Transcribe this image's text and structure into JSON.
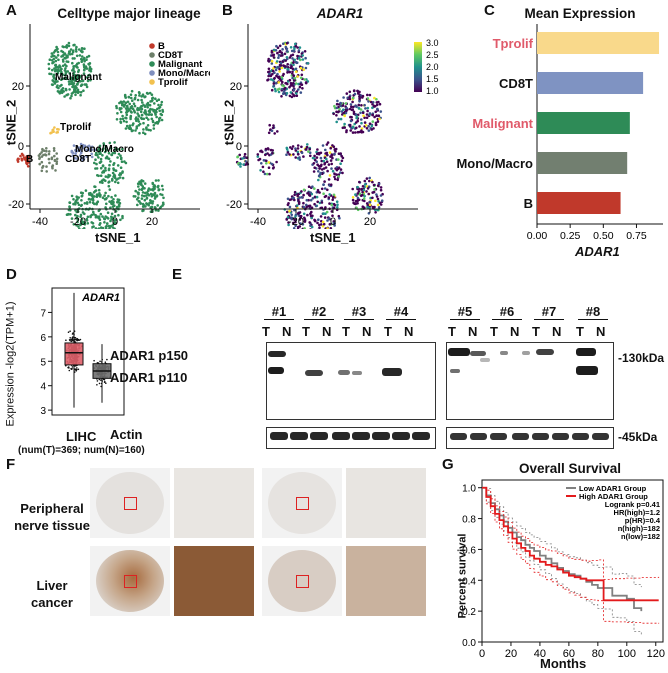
{
  "panels": {
    "A": {
      "letter": "A",
      "title": "Celltype major lineage",
      "xlabel": "tSNE_1",
      "ylabel": "tSNE_2",
      "legend": [
        {
          "name": "B",
          "color": "#c0392b"
        },
        {
          "name": "CD8T",
          "color": "#6d7f6a"
        },
        {
          "name": "Malignant",
          "color": "#2e8b57"
        },
        {
          "name": "Mono/Macro",
          "color": "#7f8fbf"
        },
        {
          "name": "Tprolif",
          "color": "#f2c14e"
        }
      ],
      "cluster_labels": [
        "Malignant",
        "Tprolif",
        "Mono/Macro",
        "CD8T",
        "B"
      ],
      "xticks": [
        "-40",
        "-20",
        "0",
        "20"
      ],
      "yticks": [
        "20",
        "0",
        "-20"
      ]
    },
    "B": {
      "letter": "B",
      "title": "ADAR1",
      "xlabel": "tSNE_1",
      "ylabel": "tSNE_2",
      "colorbar_ticks": [
        "3.0",
        "2.5",
        "2.0",
        "1.5",
        "1.0"
      ],
      "xticks": [
        "-40",
        "-20",
        "0",
        "20"
      ],
      "yticks": [
        "20",
        "0",
        "-20"
      ]
    },
    "C": {
      "letter": "C",
      "title": "Mean Expression",
      "xlabel": "ADAR1"
    },
    "D": {
      "letter": "D",
      "title": "ADAR1",
      "ylabel": "Expression -log2(TPM+1)",
      "xlabel": "LIHC",
      "caption": "(num(T)=369; num(N)=160)",
      "yticks": [
        "7",
        "6",
        "5",
        "4",
        "3"
      ]
    },
    "E": {
      "letter": "E",
      "lanes": [
        "#1",
        "#2",
        "#3",
        "#4",
        "#5",
        "#6",
        "#7",
        "#8"
      ],
      "tn": [
        "T",
        "N"
      ],
      "rows": [
        "ADAR1 p150",
        "ADAR1 p110",
        "Actin"
      ],
      "markers": [
        "130kDa",
        "45kDa"
      ]
    },
    "F": {
      "letter": "F",
      "rows": [
        "Peripheral\nnerve tissue",
        "Liver\ncancer"
      ]
    },
    "G": {
      "letter": "G",
      "title": "Overall Survival",
      "xlabel": "Months",
      "ylabel": "Percent survival",
      "legend": [
        {
          "name": "Low ADAR1 Group",
          "color": "#808080"
        },
        {
          "name": "High ADAR1 Group",
          "color": "#e31a1c"
        }
      ],
      "stats": [
        "Logrank p=0.41",
        "HR(high)=1.2",
        "p(HR)=0.4",
        "n(high)=182",
        "n(low)=182"
      ],
      "xticks": [
        "0",
        "20",
        "40",
        "60",
        "80",
        "100",
        "120"
      ],
      "yticks": [
        "0.0",
        "0.2",
        "0.4",
        "0.6",
        "0.8",
        "1.0"
      ]
    }
  },
  "chart_data": [
    {
      "type": "bar",
      "orientation": "horizontal",
      "title": "Mean Expression",
      "xlabel": "ADAR1",
      "categories": [
        "Tprolif",
        "CD8T",
        "Malignant",
        "Mono/Macro",
        "B"
      ],
      "values": [
        0.92,
        0.8,
        0.7,
        0.68,
        0.63
      ],
      "colors": [
        "#f9d98b",
        "#7f93c2",
        "#2e8b57",
        "#727f70",
        "#c0392b"
      ],
      "label_colors": [
        "#e05a6a",
        "#111111",
        "#e05a6a",
        "#111111",
        "#111111"
      ],
      "xticks": [
        "0.00",
        "0.25",
        "0.50",
        "0.75"
      ],
      "xlim": [
        0,
        0.95
      ]
    },
    {
      "type": "box",
      "title": "ADAR1",
      "xlabel": "LIHC",
      "ylabel": "Expression -log2(TPM+1)",
      "series": [
        {
          "name": "T",
          "median": 5.35,
          "q1": 4.85,
          "q3": 5.75,
          "min": 3.1,
          "max": 7.8,
          "color": "#e0606a"
        },
        {
          "name": "N",
          "median": 4.6,
          "q1": 4.3,
          "q3": 4.9,
          "min": 3.3,
          "max": 5.7,
          "color": "#6e6e6e"
        }
      ],
      "ylim": [
        2.8,
        8.0
      ]
    },
    {
      "type": "line",
      "title": "Overall Survival",
      "xlabel": "Months",
      "ylabel": "Percent survival",
      "xlim": [
        0,
        125
      ],
      "ylim": [
        0,
        1.05
      ],
      "series": [
        {
          "name": "Low ADAR1 Group",
          "color": "#808080",
          "x": [
            0,
            3,
            6,
            9,
            12,
            15,
            18,
            21,
            24,
            27,
            30,
            33,
            36,
            40,
            44,
            48,
            52,
            56,
            60,
            64,
            68,
            72,
            76,
            80,
            85,
            90,
            95,
            100,
            105,
            110
          ],
          "y": [
            1.0,
            0.95,
            0.9,
            0.86,
            0.82,
            0.78,
            0.74,
            0.71,
            0.68,
            0.66,
            0.63,
            0.61,
            0.59,
            0.56,
            0.54,
            0.51,
            0.48,
            0.46,
            0.44,
            0.43,
            0.41,
            0.39,
            0.37,
            0.35,
            0.35,
            0.3,
            0.3,
            0.28,
            0.22,
            0.2
          ]
        },
        {
          "name": "High ADAR1 Group",
          "color": "#e31a1c",
          "x": [
            0,
            3,
            6,
            9,
            12,
            15,
            18,
            21,
            24,
            27,
            30,
            33,
            36,
            40,
            44,
            48,
            52,
            56,
            60,
            64,
            68,
            72,
            76,
            80,
            84,
            90,
            100,
            110,
            122
          ],
          "y": [
            1.0,
            0.94,
            0.88,
            0.83,
            0.79,
            0.75,
            0.71,
            0.67,
            0.64,
            0.61,
            0.59,
            0.56,
            0.54,
            0.52,
            0.5,
            0.49,
            0.47,
            0.45,
            0.43,
            0.42,
            0.41,
            0.4,
            0.4,
            0.4,
            0.27,
            0.27,
            0.27,
            0.27,
            0.27
          ]
        }
      ]
    }
  ]
}
